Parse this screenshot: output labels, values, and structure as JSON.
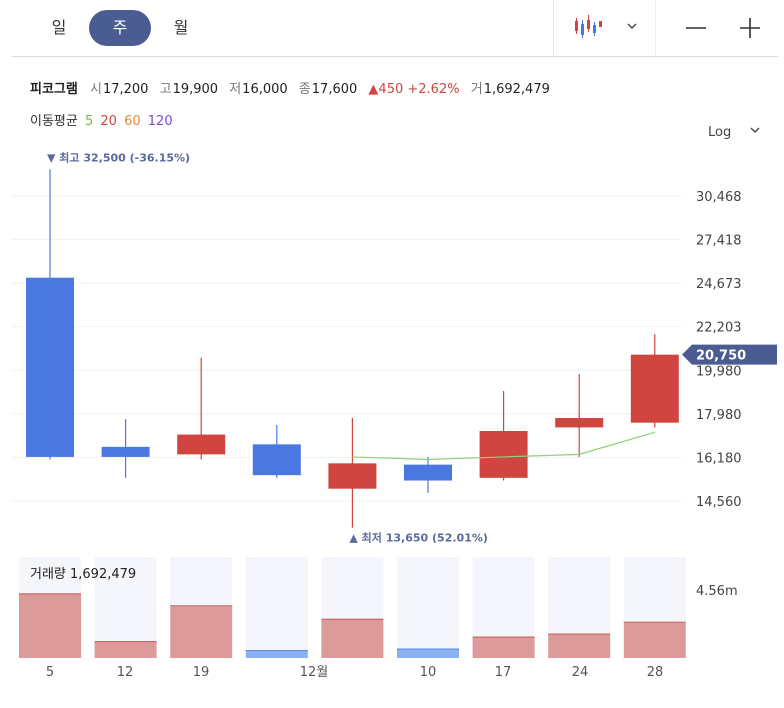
{
  "tabs": [
    {
      "label": "일",
      "active": false
    },
    {
      "label": "주",
      "active": true
    },
    {
      "label": "월",
      "active": false
    }
  ],
  "toolbar": {
    "chart_type_icon": "candlestick-icon",
    "dropdown_icon": "chevron-down-icon",
    "zoom_out_icon": "minus-icon",
    "zoom_in_icon": "plus-icon"
  },
  "quote": {
    "name": "피코그램",
    "open_label": "시",
    "open": "17,200",
    "high_label": "고",
    "high": "19,900",
    "low_label": "저",
    "low": "16,000",
    "close_label": "종",
    "close": "17,600",
    "change_arrow": "▲",
    "change": "450",
    "change_pct": "+2.62%",
    "volume_label": "거",
    "volume": "1,692,479"
  },
  "moving_average": {
    "label": "이동평균",
    "periods": [
      {
        "value": "5",
        "color": "#6fbf3e"
      },
      {
        "value": "20",
        "color": "#d0453f"
      },
      {
        "value": "60",
        "color": "#e08a3c"
      },
      {
        "value": "120",
        "color": "#7b4bc9"
      }
    ]
  },
  "scale": {
    "label": "Log"
  },
  "colors": {
    "up": "#d0453f",
    "down": "#4a78e0",
    "ma5": "#8fd07a",
    "current_tag": "#4b5c92",
    "vol_up": "#dc9a9a",
    "vol_down": "#8ab2f2",
    "vol_bg": "#f4f6fb"
  },
  "chart_data": {
    "type": "candlestick",
    "x_labels": [
      "5",
      "12",
      "19",
      "12월",
      "10",
      "17",
      "24",
      "28"
    ],
    "y_ticks": [
      30468,
      27418,
      24673,
      22203,
      19980,
      17980,
      16180,
      14560
    ],
    "y_tick_labels": [
      "30,468",
      "27,418",
      "24,673",
      "22,203",
      "19,980",
      "17,980",
      "16,180",
      "14,560"
    ],
    "scale": "log",
    "candles": [
      {
        "open": 25000,
        "high": 32500,
        "low": 16100,
        "close": 16200
      },
      {
        "open": 16600,
        "high": 17750,
        "low": 15400,
        "close": 16200
      },
      {
        "open": 16300,
        "high": 20600,
        "low": 16100,
        "close": 17100
      },
      {
        "open": 16700,
        "high": 17500,
        "low": 15400,
        "close": 15500
      },
      {
        "open": 15000,
        "high": 17800,
        "low": 13650,
        "close": 15950
      },
      {
        "open": 15900,
        "high": 16200,
        "low": 14850,
        "close": 15300
      },
      {
        "open": 15400,
        "high": 19000,
        "low": 15300,
        "close": 17250
      },
      {
        "open": 17400,
        "high": 19800,
        "low": 16200,
        "close": 17800
      },
      {
        "open": 17600,
        "high": 21800,
        "low": 17400,
        "close": 20750
      }
    ],
    "ma5": [
      null,
      null,
      null,
      null,
      16200,
      16100,
      16200,
      16300,
      17200
    ],
    "volume_label": "거래량",
    "volume_value": "1,692,479",
    "volume_axis_tick": "4.56m",
    "volumes": [
      {
        "value": 4.3,
        "up": true
      },
      {
        "value": 1.1,
        "up": true
      },
      {
        "value": 3.5,
        "up": true
      },
      {
        "value": 0.5,
        "up": false
      },
      {
        "value": 2.6,
        "up": true
      },
      {
        "value": 0.6,
        "up": false
      },
      {
        "value": 1.4,
        "up": true
      },
      {
        "value": 1.6,
        "up": true
      },
      {
        "value": 2.4,
        "up": true
      }
    ],
    "annotations": {
      "high_text": "▼ 최고 32,500 (-36.15%)",
      "low_text": "▲ 최저 13,650 (52.01%)",
      "current_price": "20,750"
    }
  }
}
